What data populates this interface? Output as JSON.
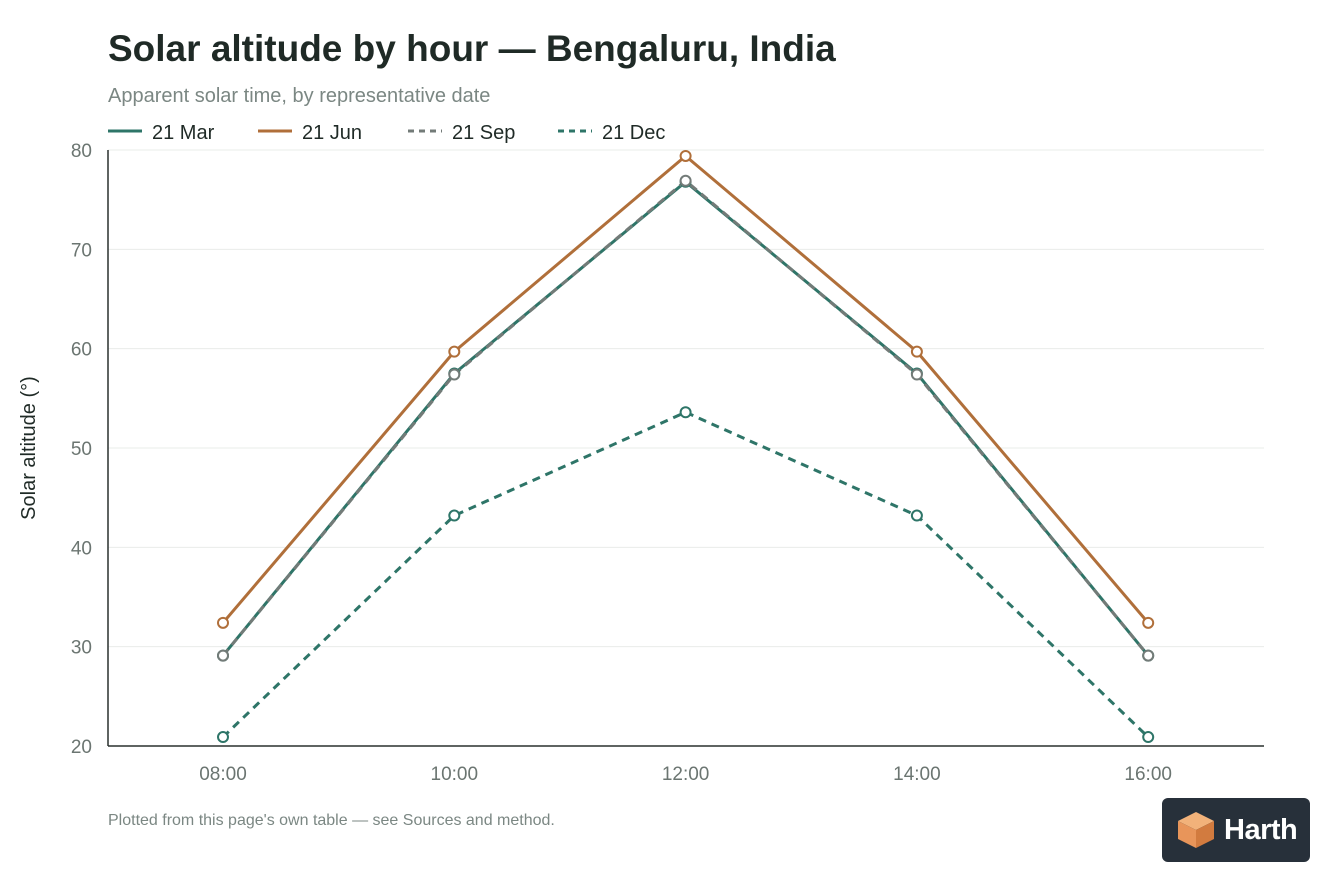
{
  "chart_data": {
    "type": "line",
    "title": "Solar altitude by hour — Bengaluru, India",
    "subtitle": "Apparent solar time, by representative date",
    "xlabel": "",
    "ylabel": "Solar altitude (°)",
    "categories": [
      "08:00",
      "10:00",
      "12:00",
      "14:00",
      "16:00"
    ],
    "ylim": [
      20,
      80
    ],
    "yticks": [
      20,
      30,
      40,
      50,
      60,
      70,
      80
    ],
    "grid": true,
    "legend_position": "top-left",
    "series": [
      {
        "name": "21 Mar",
        "values": [
          29.1,
          57.5,
          76.8,
          57.5,
          29.1
        ],
        "color": "#2e7568",
        "dash": "solid"
      },
      {
        "name": "21 Jun",
        "values": [
          32.4,
          59.7,
          79.4,
          59.7,
          32.4
        ],
        "color": "#b06f3a",
        "dash": "solid"
      },
      {
        "name": "21 Sep",
        "values": [
          29.1,
          57.4,
          76.9,
          57.4,
          29.1
        ],
        "color": "#737b78",
        "dash": "dashed"
      },
      {
        "name": "21 Dec",
        "values": [
          20.9,
          43.2,
          53.6,
          43.2,
          20.9
        ],
        "color": "#2e7568",
        "dash": "dashed"
      }
    ]
  },
  "footnote": "Plotted from this page's own table — see Sources and method.",
  "logo": {
    "name": "harth-logo",
    "text": "Harth",
    "colors": {
      "bg": "#27303a",
      "light": "#f2b27a",
      "dark": "#d27b3f"
    }
  }
}
